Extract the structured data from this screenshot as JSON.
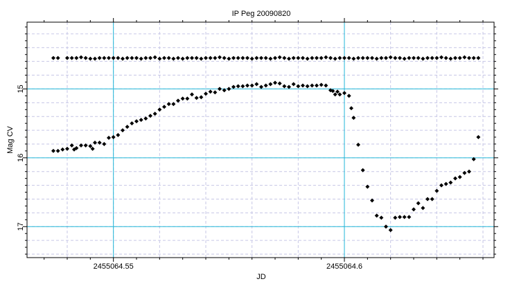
{
  "chart_data": {
    "type": "scatter",
    "title": "IP Peg 20090820",
    "xlabel": "JD",
    "ylabel": "Mag CV",
    "xlim": [
      2455064.5313,
      2455064.6324
    ],
    "ylim": [
      17.45,
      14.03
    ],
    "y_inverted": true,
    "x_major_ticks": [
      2455064.55,
      2455064.6
    ],
    "x_tick_labels": [
      "2455064.55",
      "2455064.6"
    ],
    "y_major_ticks": [
      15,
      16,
      17
    ],
    "y_tick_labels": [
      "15",
      "16",
      "17"
    ],
    "grid": true,
    "colors": {
      "major_grid": "#22b7d8",
      "minor_grid": "#c6c6e6",
      "markers": "#000000"
    },
    "series": [
      {
        "points": [
          [
            2455064.537,
            14.55
          ],
          [
            2455064.538,
            14.55
          ],
          [
            2455064.54,
            14.55
          ],
          [
            2455064.541,
            14.55
          ],
          [
            2455064.542,
            14.55
          ],
          [
            2455064.543,
            14.54
          ],
          [
            2455064.544,
            14.55
          ],
          [
            2455064.545,
            14.56
          ],
          [
            2455064.546,
            14.56
          ],
          [
            2455064.547,
            14.55
          ],
          [
            2455064.548,
            14.55
          ],
          [
            2455064.549,
            14.55
          ],
          [
            2455064.55,
            14.55
          ],
          [
            2455064.551,
            14.55
          ],
          [
            2455064.552,
            14.56
          ],
          [
            2455064.553,
            14.55
          ],
          [
            2455064.554,
            14.55
          ],
          [
            2455064.555,
            14.55
          ],
          [
            2455064.556,
            14.56
          ],
          [
            2455064.557,
            14.55
          ],
          [
            2455064.558,
            14.55
          ],
          [
            2455064.559,
            14.54
          ],
          [
            2455064.56,
            14.56
          ],
          [
            2455064.561,
            14.55
          ],
          [
            2455064.562,
            14.55
          ],
          [
            2455064.563,
            14.56
          ],
          [
            2455064.564,
            14.55
          ],
          [
            2455064.565,
            14.56
          ],
          [
            2455064.566,
            14.55
          ],
          [
            2455064.567,
            14.55
          ],
          [
            2455064.568,
            14.55
          ],
          [
            2455064.569,
            14.56
          ],
          [
            2455064.57,
            14.55
          ],
          [
            2455064.571,
            14.55
          ],
          [
            2455064.572,
            14.55
          ],
          [
            2455064.573,
            14.54
          ],
          [
            2455064.574,
            14.55
          ],
          [
            2455064.575,
            14.56
          ],
          [
            2455064.576,
            14.55
          ],
          [
            2455064.577,
            14.55
          ],
          [
            2455064.578,
            14.55
          ],
          [
            2455064.579,
            14.55
          ],
          [
            2455064.58,
            14.56
          ],
          [
            2455064.581,
            14.55
          ],
          [
            2455064.582,
            14.55
          ],
          [
            2455064.583,
            14.55
          ],
          [
            2455064.584,
            14.56
          ],
          [
            2455064.585,
            14.55
          ],
          [
            2455064.586,
            14.54
          ],
          [
            2455064.587,
            14.55
          ],
          [
            2455064.588,
            14.56
          ],
          [
            2455064.589,
            14.55
          ],
          [
            2455064.59,
            14.55
          ],
          [
            2455064.591,
            14.55
          ],
          [
            2455064.592,
            14.56
          ],
          [
            2455064.593,
            14.55
          ],
          [
            2455064.594,
            14.55
          ],
          [
            2455064.595,
            14.55
          ],
          [
            2455064.596,
            14.54
          ],
          [
            2455064.597,
            14.55
          ],
          [
            2455064.598,
            14.56
          ],
          [
            2455064.599,
            14.55
          ],
          [
            2455064.6,
            14.55
          ],
          [
            2455064.601,
            14.55
          ],
          [
            2455064.602,
            14.56
          ],
          [
            2455064.603,
            14.55
          ],
          [
            2455064.604,
            14.55
          ],
          [
            2455064.605,
            14.55
          ],
          [
            2455064.606,
            14.55
          ],
          [
            2455064.607,
            14.56
          ],
          [
            2455064.608,
            14.55
          ],
          [
            2455064.609,
            14.55
          ],
          [
            2455064.61,
            14.54
          ],
          [
            2455064.611,
            14.55
          ],
          [
            2455064.612,
            14.55
          ],
          [
            2455064.613,
            14.56
          ],
          [
            2455064.614,
            14.55
          ],
          [
            2455064.615,
            14.55
          ],
          [
            2455064.616,
            14.55
          ],
          [
            2455064.617,
            14.56
          ],
          [
            2455064.618,
            14.55
          ],
          [
            2455064.619,
            14.55
          ],
          [
            2455064.62,
            14.55
          ],
          [
            2455064.621,
            14.54
          ],
          [
            2455064.622,
            14.55
          ],
          [
            2455064.623,
            14.56
          ],
          [
            2455064.624,
            14.55
          ],
          [
            2455064.625,
            14.55
          ],
          [
            2455064.626,
            14.54
          ],
          [
            2455064.627,
            14.55
          ],
          [
            2455064.628,
            14.55
          ],
          [
            2455064.629,
            14.55
          ]
        ]
      },
      {
        "points": [
          [
            2455064.537,
            15.9
          ],
          [
            2455064.538,
            15.9
          ],
          [
            2455064.539,
            15.88
          ],
          [
            2455064.54,
            15.87
          ],
          [
            2455064.541,
            15.82
          ],
          [
            2455064.5415,
            15.88
          ],
          [
            2455064.542,
            15.86
          ],
          [
            2455064.543,
            15.82
          ],
          [
            2455064.544,
            15.82
          ],
          [
            2455064.545,
            15.83
          ],
          [
            2455064.5455,
            15.87
          ],
          [
            2455064.546,
            15.78
          ],
          [
            2455064.547,
            15.78
          ],
          [
            2455064.548,
            15.8
          ],
          [
            2455064.549,
            15.71
          ],
          [
            2455064.55,
            15.7
          ],
          [
            2455064.551,
            15.67
          ],
          [
            2455064.552,
            15.6
          ],
          [
            2455064.553,
            15.55
          ],
          [
            2455064.554,
            15.5
          ],
          [
            2455064.555,
            15.47
          ],
          [
            2455064.556,
            15.45
          ],
          [
            2455064.557,
            15.43
          ],
          [
            2455064.558,
            15.39
          ],
          [
            2455064.559,
            15.36
          ],
          [
            2455064.56,
            15.3
          ],
          [
            2455064.561,
            15.26
          ],
          [
            2455064.562,
            15.22
          ],
          [
            2455064.563,
            15.22
          ],
          [
            2455064.564,
            15.17
          ],
          [
            2455064.565,
            15.14
          ],
          [
            2455064.566,
            15.14
          ],
          [
            2455064.567,
            15.08
          ],
          [
            2455064.568,
            15.13
          ],
          [
            2455064.569,
            15.12
          ],
          [
            2455064.57,
            15.07
          ],
          [
            2455064.571,
            15.04
          ],
          [
            2455064.572,
            15.05
          ],
          [
            2455064.573,
            15.0
          ],
          [
            2455064.574,
            15.02
          ],
          [
            2455064.575,
            15.0
          ],
          [
            2455064.576,
            14.97
          ],
          [
            2455064.577,
            14.96
          ],
          [
            2455064.578,
            14.96
          ],
          [
            2455064.579,
            14.95
          ],
          [
            2455064.58,
            14.95
          ],
          [
            2455064.581,
            14.93
          ],
          [
            2455064.582,
            14.97
          ],
          [
            2455064.583,
            14.95
          ],
          [
            2455064.584,
            14.93
          ],
          [
            2455064.585,
            14.91
          ],
          [
            2455064.586,
            14.92
          ],
          [
            2455064.587,
            14.96
          ],
          [
            2455064.588,
            14.97
          ],
          [
            2455064.589,
            14.93
          ],
          [
            2455064.59,
            14.96
          ],
          [
            2455064.591,
            14.95
          ],
          [
            2455064.592,
            14.96
          ],
          [
            2455064.593,
            14.95
          ],
          [
            2455064.594,
            14.95
          ],
          [
            2455064.595,
            14.94
          ],
          [
            2455064.596,
            14.95
          ],
          [
            2455064.597,
            15.02
          ],
          [
            2455064.5975,
            15.03
          ],
          [
            2455064.598,
            15.08
          ],
          [
            2455064.5985,
            15.04
          ],
          [
            2455064.599,
            15.08
          ],
          [
            2455064.6,
            15.06
          ],
          [
            2455064.601,
            15.1
          ],
          [
            2455064.6015,
            15.28
          ],
          [
            2455064.602,
            15.42
          ],
          [
            2455064.603,
            15.81
          ],
          [
            2455064.604,
            16.18
          ],
          [
            2455064.605,
            16.42
          ],
          [
            2455064.606,
            16.62
          ],
          [
            2455064.607,
            16.84
          ],
          [
            2455064.608,
            16.87
          ],
          [
            2455064.609,
            17.0
          ],
          [
            2455064.61,
            17.05
          ],
          [
            2455064.611,
            16.87
          ],
          [
            2455064.612,
            16.86
          ],
          [
            2455064.613,
            16.86
          ],
          [
            2455064.614,
            16.86
          ],
          [
            2455064.615,
            16.75
          ],
          [
            2455064.616,
            16.66
          ],
          [
            2455064.617,
            16.73
          ],
          [
            2455064.618,
            16.6
          ],
          [
            2455064.619,
            16.6
          ],
          [
            2455064.62,
            16.48
          ],
          [
            2455064.621,
            16.4
          ],
          [
            2455064.622,
            16.38
          ],
          [
            2455064.623,
            16.36
          ],
          [
            2455064.624,
            16.3
          ],
          [
            2455064.625,
            16.28
          ],
          [
            2455064.626,
            16.22
          ],
          [
            2455064.627,
            16.2
          ],
          [
            2455064.628,
            16.02
          ],
          [
            2455064.629,
            15.7
          ]
        ]
      }
    ]
  }
}
